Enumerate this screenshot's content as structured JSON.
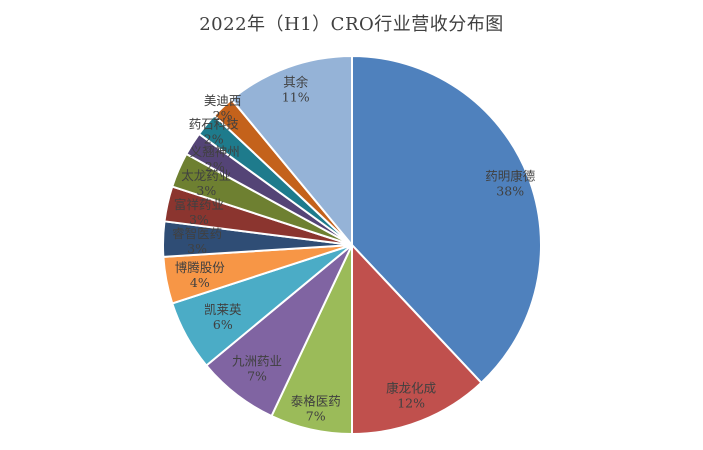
{
  "page": {
    "background_color": "#ffffff"
  },
  "chart_data": {
    "type": "pie",
    "title": "2022年（H1）CRO行业营收分布图",
    "unit": "%",
    "direction": "clockwise",
    "start_angle_deg": 0,
    "legend": "none",
    "label_style": "name-and-percent-inside",
    "label_color": "#404040",
    "slice_border_color": "#ffffff",
    "slices": [
      {
        "label": "药明康德",
        "value": 38,
        "color": "#4F81BD",
        "label_r": 0.9
      },
      {
        "label": "康龙化成",
        "value": 12,
        "color": "#C0504D",
        "label_r": 0.85
      },
      {
        "label": "泰格医药",
        "value": 7,
        "color": "#9BBB59",
        "label_r": 0.88
      },
      {
        "label": "九洲药业",
        "value": 7,
        "color": "#8064A2",
        "label_r": 0.82
      },
      {
        "label": "凯莱英",
        "value": 6,
        "color": "#4BACC6",
        "label_r": 0.78
      },
      {
        "label": "博腾股份",
        "value": 4,
        "color": "#F79646",
        "label_r": 0.82
      },
      {
        "label": "睿智医药",
        "value": 3,
        "color": "#2F4D75",
        "label_r": 0.82
      },
      {
        "label": "富祥药业",
        "value": 3,
        "color": "#8B352F",
        "label_r": 0.83
      },
      {
        "label": "太龙药业",
        "value": 3,
        "color": "#6E8031",
        "label_r": 0.84
      },
      {
        "label": "义翘神州",
        "value": 2,
        "color": "#544476",
        "label_r": 0.86
      },
      {
        "label": "药石科技",
        "value": 2,
        "color": "#1E7B8C",
        "label_r": 0.95
      },
      {
        "label": "美迪西",
        "value": 2,
        "color": "#C4621B",
        "label_r": 1.0
      },
      {
        "label": "其余",
        "value": 11,
        "color": "#95B3D7",
        "label_r": 0.88
      }
    ]
  }
}
